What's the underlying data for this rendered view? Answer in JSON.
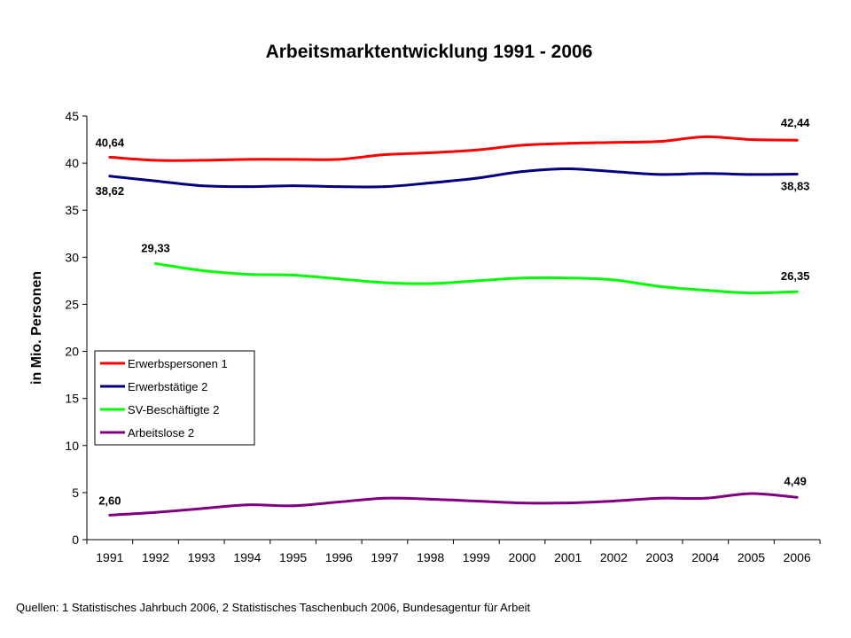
{
  "chart_data": {
    "type": "line",
    "title": "Arbeitsmarktentwicklung 1991 - 2006",
    "ylabel": "in Mio. Personen",
    "xlabel": "",
    "x": [
      "1991",
      "1992",
      "1993",
      "1994",
      "1995",
      "1996",
      "1997",
      "1998",
      "1999",
      "2000",
      "2001",
      "2002",
      "2003",
      "2004",
      "2005",
      "2006"
    ],
    "ylim": [
      0,
      45
    ],
    "yticks": [
      "0",
      "5",
      "10",
      "15",
      "20",
      "25",
      "30",
      "35",
      "40",
      "45"
    ],
    "grid": false,
    "legend_position": "left-middle",
    "series": [
      {
        "name": "Erwerbspersonen 1",
        "color": "#ff0000",
        "values": [
          40.64,
          40.3,
          40.3,
          40.4,
          40.4,
          40.4,
          40.9,
          41.1,
          41.4,
          41.9,
          42.1,
          42.2,
          42.3,
          42.8,
          42.5,
          42.44
        ],
        "start_label": "40,64",
        "end_label": "42,44"
      },
      {
        "name": "Erwerbstätige 2",
        "color": "#000080",
        "values": [
          38.62,
          38.1,
          37.6,
          37.5,
          37.6,
          37.5,
          37.5,
          37.9,
          38.4,
          39.1,
          39.4,
          39.1,
          38.8,
          38.9,
          38.8,
          38.83
        ],
        "start_label": "38,62",
        "end_label": "38,83"
      },
      {
        "name": "SV-Beschäftigte 2",
        "color": "#00ff00",
        "values": [
          null,
          29.33,
          28.6,
          28.2,
          28.1,
          27.7,
          27.3,
          27.2,
          27.5,
          27.8,
          27.8,
          27.6,
          26.9,
          26.5,
          26.2,
          26.35
        ],
        "start_label": "29,33",
        "end_label": "26,35"
      },
      {
        "name": "Arbeitslose 2",
        "color": "#800080",
        "values": [
          2.6,
          2.9,
          3.3,
          3.7,
          3.6,
          4.0,
          4.4,
          4.3,
          4.1,
          3.9,
          3.9,
          4.1,
          4.4,
          4.4,
          4.9,
          4.49
        ],
        "start_label": "2,60",
        "end_label": "4,49"
      }
    ]
  },
  "footer": {
    "source": "Quellen: 1 Statistisches Jahrbuch 2006, 2 Statistisches Taschenbuch 2006, Bundesagentur für Arbeit"
  }
}
